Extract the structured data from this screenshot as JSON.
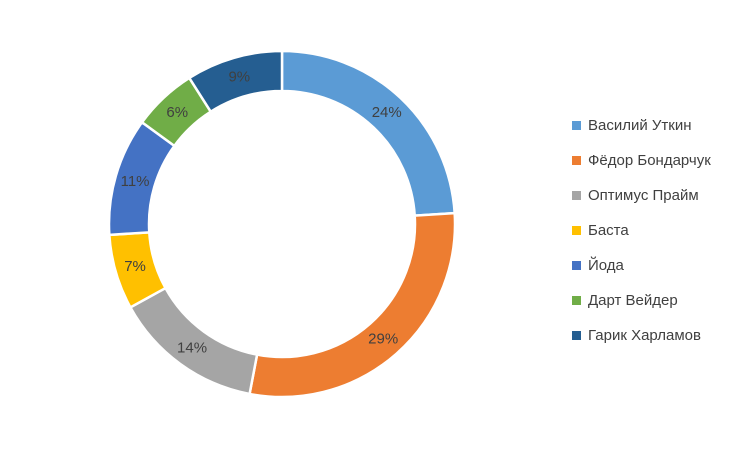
{
  "chart_data": {
    "type": "pie",
    "variant": "doughnut",
    "legend_position": "right",
    "categories": [
      "Василий Уткин",
      "Фёдор Бондарчук",
      "Оптимус Прайм",
      "Баста",
      "Йода",
      "Дарт Вейдер",
      "Гарик Харламов"
    ],
    "values": [
      24,
      29,
      14,
      7,
      11,
      6,
      9
    ],
    "labels": [
      "24%",
      "29%",
      "14%",
      "7%",
      "11%",
      "6%",
      "9%"
    ],
    "colors": [
      "#5b9bd5",
      "#ed7d31",
      "#a5a5a5",
      "#ffc000",
      "#4472c4",
      "#70ad47",
      "#255e91"
    ]
  }
}
